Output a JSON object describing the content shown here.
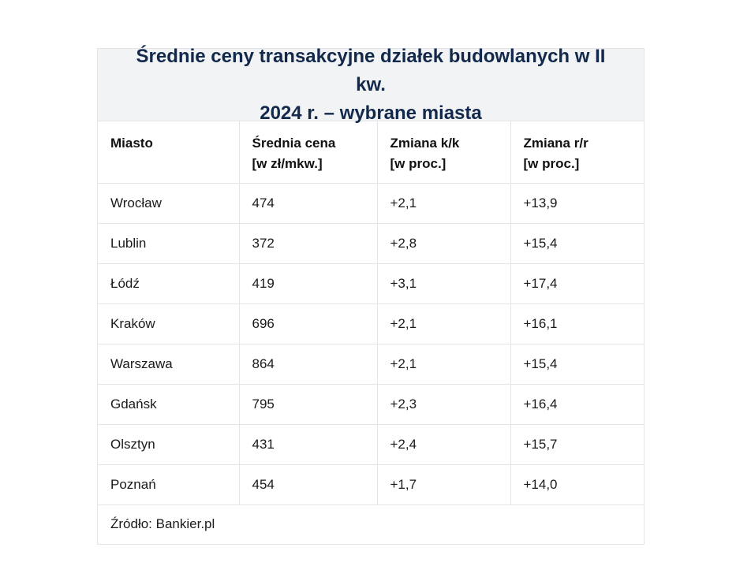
{
  "title": {
    "line1": "Średnie ceny transakcyjne działek budowlanych w II kw.",
    "line2": "2024 r. – wybrane miasta"
  },
  "headers": [
    {
      "line1": "Miasto",
      "line2": ""
    },
    {
      "line1": "Średnia cena",
      "line2": "[w zł/mkw.]"
    },
    {
      "line1": "Zmiana k/k",
      "line2": "[w proc.]"
    },
    {
      "line1": "Zmiana r/r",
      "line2": "[w proc.]"
    }
  ],
  "rows": [
    {
      "city": "Wrocław",
      "price": "474",
      "qq": "+2,1",
      "yy": "+13,9"
    },
    {
      "city": "Lublin",
      "price": "372",
      "qq": "+2,8",
      "yy": "+15,4"
    },
    {
      "city": "Łódź",
      "price": "419",
      "qq": "+3,1",
      "yy": "+17,4"
    },
    {
      "city": "Kraków",
      "price": "696",
      "qq": "+2,1",
      "yy": "+16,1"
    },
    {
      "city": "Warszawa",
      "price": "864",
      "qq": "+2,1",
      "yy": "+15,4"
    },
    {
      "city": "Gdańsk",
      "price": "795",
      "qq": "+2,3",
      "yy": "+16,4"
    },
    {
      "city": "Olsztyn",
      "price": "431",
      "qq": "+2,4",
      "yy": "+15,7"
    },
    {
      "city": "Poznań",
      "price": "454",
      "qq": "+1,7",
      "yy": "+14,0"
    }
  ],
  "source": "Źródło: Bankier.pl",
  "colors": {
    "title_text": "#13294b",
    "title_background": "#f2f3f5",
    "border": "#e3e5e8"
  },
  "chart_data": {
    "type": "table",
    "title": "Średnie ceny transakcyjne działek budowlanych w II kw. 2024 r. – wybrane miasta",
    "columns": [
      "Miasto",
      "Średnia cena [w zł/mkw.]",
      "Zmiana k/k [w proc.]",
      "Zmiana r/r [w proc.]"
    ],
    "rows": [
      [
        "Wrocław",
        474,
        2.1,
        13.9
      ],
      [
        "Lublin",
        372,
        2.8,
        15.4
      ],
      [
        "Łódź",
        419,
        3.1,
        17.4
      ],
      [
        "Kraków",
        696,
        2.1,
        16.1
      ],
      [
        "Warszawa",
        864,
        2.1,
        15.4
      ],
      [
        "Gdańsk",
        795,
        2.3,
        16.4
      ],
      [
        "Olsztyn",
        431,
        2.4,
        15.7
      ],
      [
        "Poznań",
        454,
        1.7,
        14.0
      ]
    ],
    "source": "Bankier.pl"
  }
}
